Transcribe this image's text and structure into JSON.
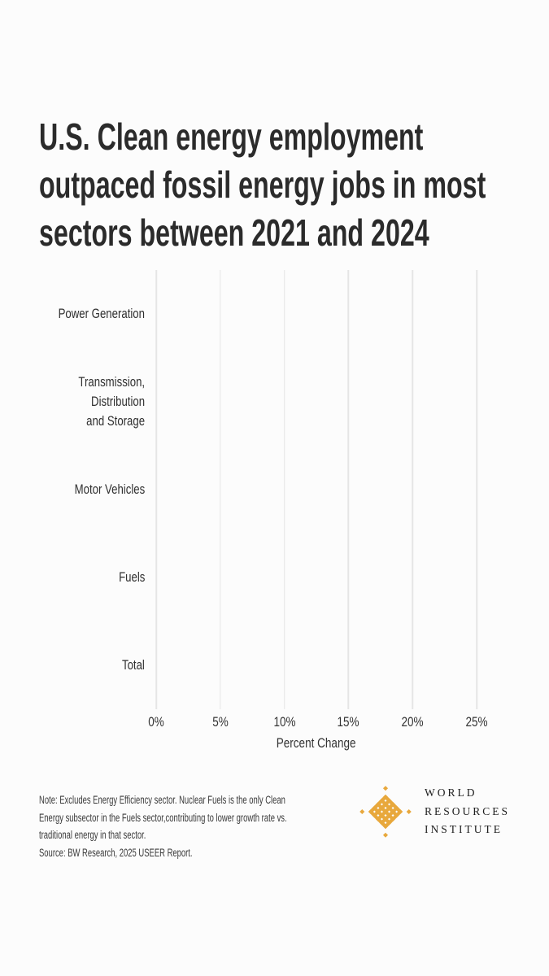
{
  "title": {
    "lines": [
      "U.S. Clean energy employment",
      "outpaced fossil energy jobs in most",
      "sectors between 2021 and 2024"
    ]
  },
  "chart_data": {
    "type": "bar",
    "orientation": "horizontal",
    "title": "U.S. Clean energy employment outpaced fossil energy jobs in most sectors between 2021 and 2024",
    "categories": [
      "Power Generation",
      "Transmission,\nDistribution\nand Storage",
      "Motor Vehicles",
      "Fuels",
      "Total"
    ],
    "series": [],
    "bars_rendered": false,
    "values_visible": false,
    "xlabel": "Percent Change",
    "x_ticks": [
      "0%",
      "5%",
      "10%",
      "15%",
      "20%",
      "25%"
    ],
    "x_tick_values": [
      0,
      5,
      10,
      15,
      20,
      25
    ],
    "xlim": [
      0,
      25
    ],
    "grid": "vertical-only",
    "legend": "none"
  },
  "footnote": {
    "note": "Note: Excludes Energy Efficiency sector. Nuclear Fuels is the only Clean\nEnergy subsector in the Fuels sector,contributing to lower growth rate vs.\ntraditional energy in that sector.",
    "source": "Source: BW Research, 2025 USEER Report."
  },
  "logo": {
    "lines": [
      "WORLD",
      "RESOURCES",
      "INSTITUTE"
    ]
  },
  "colors": {
    "background": "#fcfcfc",
    "title_text": "#2b2b2b",
    "axis_text": "#333333",
    "category_text": "#2f2f2f",
    "gridline": "#e5e5e5",
    "footnote_text": "#3a3a3a",
    "logo_gold": "#E8A83C",
    "logo_text": "#1d1d1d"
  }
}
